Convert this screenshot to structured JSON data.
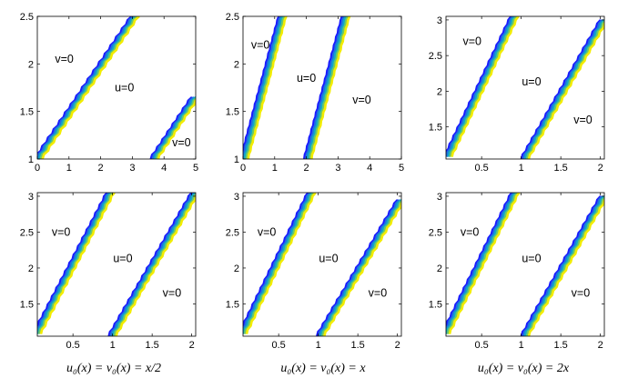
{
  "palette": {
    "front_colors": [
      "#1a1aff",
      "#1f6fe0",
      "#12a8c8",
      "#6cc86a",
      "#f2ec00"
    ],
    "background": "#ffffff",
    "axis": "#000000"
  },
  "captions": [
    "u₀(x) = v₀(x) = x/2",
    "u₀(x) = v₀(x) = x",
    "u₀(x) = v₀(x) = 2x"
  ],
  "chart_data": [
    {
      "type": "contour",
      "xlim": [
        0,
        5
      ],
      "ylim": [
        1,
        2.5
      ],
      "xticks": [
        "0",
        "1",
        "2",
        "3",
        "4",
        "5"
      ],
      "xtick_values": [
        0,
        1,
        2,
        3,
        4,
        5
      ],
      "yticks": [
        "1",
        "1.5",
        "2",
        "2.5"
      ],
      "ytick_values": [
        1,
        1.5,
        2,
        2.5
      ],
      "fronts": [
        [
          [
            0.05,
            1.0
          ],
          [
            3.1,
            2.5
          ]
        ],
        [
          [
            3.7,
            1.0
          ],
          [
            5.0,
            1.65
          ]
        ]
      ],
      "regions": [
        {
          "label": "v=0",
          "x": 0.85,
          "y": 2.05
        },
        {
          "label": "u=0",
          "x": 2.75,
          "y": 1.75
        },
        {
          "label": "v=0",
          "x": 4.55,
          "y": 1.17
        }
      ]
    },
    {
      "type": "contour",
      "xlim": [
        0,
        5
      ],
      "ylim": [
        1,
        2.5
      ],
      "xticks": [
        "0",
        "1",
        "2",
        "3",
        "4",
        "5"
      ],
      "xtick_values": [
        0,
        1,
        2,
        3,
        4,
        5
      ],
      "yticks": [
        "1",
        "1.5",
        "2",
        "2.5"
      ],
      "ytick_values": [
        1,
        1.5,
        2,
        2.5
      ],
      "fronts": [
        [
          [
            0.05,
            1.0
          ],
          [
            1.25,
            2.5
          ]
        ],
        [
          [
            2.05,
            1.0
          ],
          [
            3.25,
            2.5
          ]
        ]
      ],
      "regions": [
        {
          "label": "v=0",
          "x": 0.55,
          "y": 2.2
        },
        {
          "label": "u=0",
          "x": 2.0,
          "y": 1.85
        },
        {
          "label": "v=0",
          "x": 3.75,
          "y": 1.62
        }
      ]
    },
    {
      "type": "contour",
      "xlim": [
        0.05,
        2.05
      ],
      "ylim": [
        1.05,
        3.05
      ],
      "xticks": [
        "0.5",
        "1",
        "1.5",
        "2"
      ],
      "xtick_values": [
        0.5,
        1,
        1.5,
        2
      ],
      "yticks": [
        "1.5",
        "2",
        "2.5",
        "3"
      ],
      "ytick_values": [
        1.5,
        2,
        2.5,
        3
      ],
      "fronts": [
        [
          [
            0.08,
            1.08
          ],
          [
            0.92,
            3.05
          ]
        ],
        [
          [
            1.05,
            1.05
          ],
          [
            2.05,
            3.0
          ]
        ]
      ],
      "regions": [
        {
          "label": "v=0",
          "x": 0.38,
          "y": 2.7
        },
        {
          "label": "u=0",
          "x": 1.13,
          "y": 2.13
        },
        {
          "label": "v=0",
          "x": 1.78,
          "y": 1.6
        }
      ]
    },
    {
      "type": "contour",
      "xlim": [
        0.05,
        2.05
      ],
      "ylim": [
        1.05,
        3.05
      ],
      "xticks": [
        "0.5",
        "1",
        "1.5",
        "2"
      ],
      "xtick_values": [
        0.5,
        1,
        1.5,
        2
      ],
      "yticks": [
        "1.5",
        "2",
        "2.5",
        "3"
      ],
      "ytick_values": [
        1.5,
        2,
        2.5,
        3
      ],
      "fronts": [
        [
          [
            0.05,
            1.08
          ],
          [
            0.98,
            3.05
          ]
        ],
        [
          [
            1.0,
            1.05
          ],
          [
            2.05,
            3.05
          ]
        ]
      ],
      "regions": [
        {
          "label": "v=0",
          "x": 0.35,
          "y": 2.5
        },
        {
          "label": "u=0",
          "x": 1.13,
          "y": 2.13
        },
        {
          "label": "v=0",
          "x": 1.75,
          "y": 1.65
        }
      ]
    },
    {
      "type": "contour",
      "xlim": [
        0.05,
        2.05
      ],
      "ylim": [
        1.05,
        3.05
      ],
      "xticks": [
        "0.5",
        "1",
        "1.5",
        "2"
      ],
      "xtick_values": [
        0.5,
        1,
        1.5,
        2
      ],
      "yticks": [
        "1.5",
        "2",
        "2.5",
        "3"
      ],
      "ytick_values": [
        1.5,
        2,
        2.5,
        3
      ],
      "fronts": [
        [
          [
            0.05,
            1.08
          ],
          [
            0.92,
            3.05
          ]
        ],
        [
          [
            1.03,
            1.05
          ],
          [
            2.05,
            2.95
          ]
        ]
      ],
      "regions": [
        {
          "label": "v=0",
          "x": 0.35,
          "y": 2.5
        },
        {
          "label": "u=0",
          "x": 1.13,
          "y": 2.13
        },
        {
          "label": "v=0",
          "x": 1.75,
          "y": 1.65
        }
      ]
    },
    {
      "type": "contour",
      "xlim": [
        0.05,
        2.05
      ],
      "ylim": [
        1.05,
        3.05
      ],
      "xticks": [
        "0.5",
        "1",
        "1.5",
        "2"
      ],
      "xtick_values": [
        0.5,
        1,
        1.5,
        2
      ],
      "yticks": [
        "1.5",
        "2",
        "2.5",
        "3"
      ],
      "ytick_values": [
        1.5,
        2,
        2.5,
        3
      ],
      "fronts": [
        [
          [
            0.05,
            1.08
          ],
          [
            0.93,
            3.05
          ]
        ],
        [
          [
            1.05,
            1.05
          ],
          [
            2.05,
            3.0
          ]
        ]
      ],
      "regions": [
        {
          "label": "v=0",
          "x": 0.35,
          "y": 2.5
        },
        {
          "label": "u=0",
          "x": 1.13,
          "y": 2.13
        },
        {
          "label": "v=0",
          "x": 1.75,
          "y": 1.65
        }
      ]
    }
  ]
}
